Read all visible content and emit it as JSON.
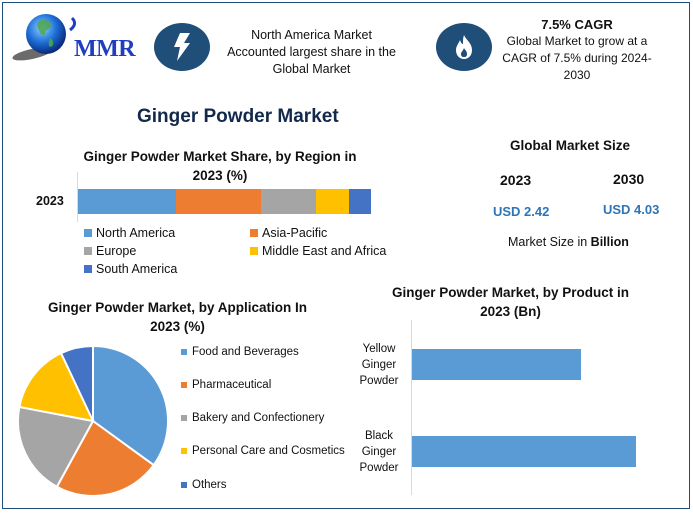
{
  "header": {
    "logo_text": "MMR",
    "highlight_1": {
      "icon": "lightning-bolt-icon",
      "text_lines": [
        "North America Market",
        "Accounted largest share in the",
        "Global Market"
      ]
    },
    "highlight_2": {
      "icon": "flame-icon",
      "title": "7.5% CAGR",
      "text_lines": [
        "Global Market to grow at a",
        "CAGR of 7.5% during 2024-",
        "2030"
      ]
    }
  },
  "main_title": "Ginger Powder Market",
  "market_size": {
    "title": "Global Market Size",
    "year_1": "2023",
    "value_1": "USD 2.42",
    "year_2": "2030",
    "value_2": "USD 4.03",
    "note_prefix": "Market Size in ",
    "note_bold": "Billion",
    "value_color": "#2e75b6"
  },
  "chart_data": [
    {
      "type": "bar",
      "orientation": "horizontal-stacked",
      "title": "Ginger Powder Market Share, by Region in 2023 (%)",
      "title_lines": [
        "Ginger Powder Market Share, by Region in",
        "2023 (%)"
      ],
      "categories": [
        "2023"
      ],
      "series": [
        {
          "name": "North America",
          "values": [
            33.4
          ],
          "color": "#5b9bd5"
        },
        {
          "name": "Asia-Pacific",
          "values": [
            29.0
          ],
          "color": "#ed7d31"
        },
        {
          "name": "Europe",
          "values": [
            18.8
          ],
          "color": "#a5a5a5"
        },
        {
          "name": "Middle East and Africa",
          "values": [
            11.3
          ],
          "color": "#ffc000"
        },
        {
          "name": "South America",
          "values": [
            7.5
          ],
          "color": "#4472c4"
        }
      ],
      "xlabel": "",
      "ylabel": "",
      "legend_position": "bottom",
      "grid": false
    },
    {
      "type": "pie",
      "title": "Ginger Powder Market, by Application In 2023 (%)",
      "title_lines": [
        "Ginger Powder Market, by Application In",
        "2023 (%)"
      ],
      "categories": [
        "Food and Beverages",
        "Pharmaceutical",
        "Bakery and Confectionery",
        "Personal Care and Cosmetics",
        "Others"
      ],
      "values": [
        35,
        23,
        20,
        15,
        7
      ],
      "colors": [
        "#5b9bd5",
        "#ed7d31",
        "#a5a5a5",
        "#ffc000",
        "#4472c4"
      ],
      "legend_position": "right"
    },
    {
      "type": "bar",
      "orientation": "horizontal",
      "title": "Ginger Powder Market, by Product in 2023 (Bn)",
      "title_lines": [
        "Ginger Powder Market, by Product in",
        "2023 (Bn)"
      ],
      "categories": [
        "Yellow Ginger Powder",
        "Black Ginger Powder"
      ],
      "category_lines": [
        [
          "Yellow",
          "Ginger",
          "Powder"
        ],
        [
          "Black",
          "Ginger",
          "Powder"
        ]
      ],
      "values": [
        1.04,
        1.38
      ],
      "color": "#5b9bd5",
      "xlabel": "",
      "ylabel": "",
      "grid": false
    }
  ]
}
